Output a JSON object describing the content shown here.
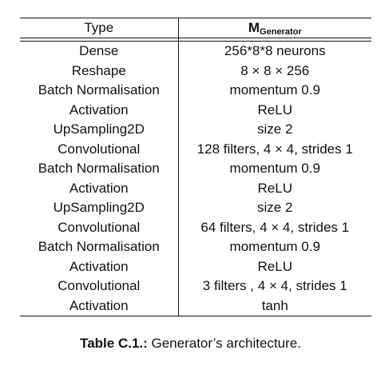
{
  "table": {
    "header": {
      "col1": "Type",
      "col2_main": "M",
      "col2_sub": "Generator"
    },
    "rows": [
      {
        "type": "Dense",
        "value": "256*8*8 neurons"
      },
      {
        "type": "Reshape",
        "value": "8 × 8 × 256"
      },
      {
        "type": "Batch Normalisation",
        "value": "momentum 0.9"
      },
      {
        "type": "Activation",
        "value": "ReLU"
      },
      {
        "type": "UpSampling2D",
        "value": "size 2"
      },
      {
        "type": "Convolutional",
        "value": "128 filters, 4 × 4, strides 1"
      },
      {
        "type": "Batch Normalisation",
        "value": "momentum 0.9"
      },
      {
        "type": "Activation",
        "value": "ReLU"
      },
      {
        "type": "UpSampling2D",
        "value": "size 2"
      },
      {
        "type": "Convolutional",
        "value": "64 filters, 4 × 4, strides 1"
      },
      {
        "type": "Batch Normalisation",
        "value": "momentum 0.9"
      },
      {
        "type": "Activation",
        "value": "ReLU"
      },
      {
        "type": "Convolutional",
        "value": "3 filters , 4 × 4, strides 1"
      },
      {
        "type": "Activation",
        "value": "tanh"
      }
    ]
  },
  "caption": {
    "label": "Table C.1.:",
    "text": " Generator’s architecture."
  }
}
